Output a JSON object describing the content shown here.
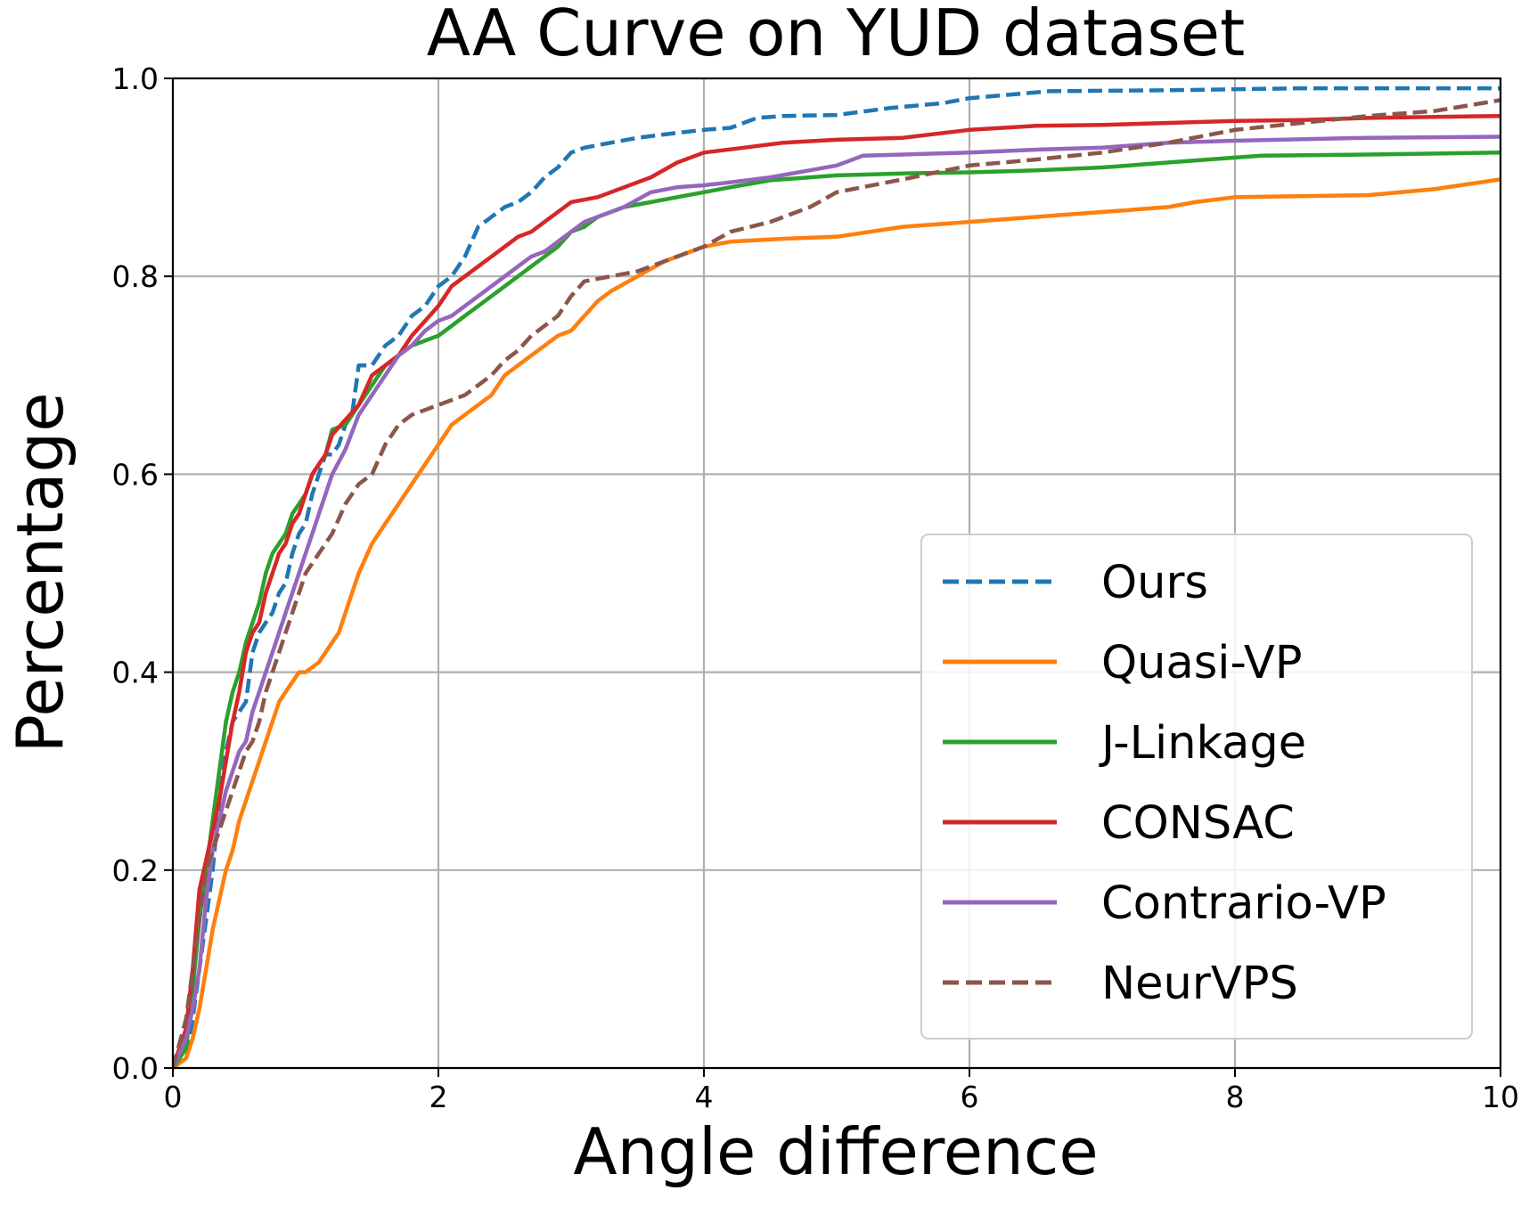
{
  "chart_data": {
    "type": "line",
    "title": "AA Curve on YUD dataset",
    "xlabel": "Angle difference",
    "ylabel": "Percentage",
    "xlim": [
      0,
      10
    ],
    "ylim": [
      0,
      1
    ],
    "xticks": [
      "0",
      "2",
      "4",
      "6",
      "8",
      "10"
    ],
    "yticks": [
      "0.0",
      "0.2",
      "0.4",
      "0.6",
      "0.8",
      "1.0"
    ],
    "grid": true,
    "legend_position": "lower-right",
    "series": [
      {
        "name": "Ours",
        "color": "#1f77b4",
        "dashed": true,
        "x": [
          0,
          0.1,
          0.15,
          0.2,
          0.25,
          0.3,
          0.35,
          0.4,
          0.45,
          0.5,
          0.55,
          0.6,
          0.65,
          0.7,
          0.75,
          0.8,
          0.85,
          0.9,
          0.95,
          1.0,
          1.05,
          1.1,
          1.15,
          1.2,
          1.25,
          1.3,
          1.35,
          1.4,
          1.5,
          1.6,
          1.7,
          1.8,
          1.9,
          2.0,
          2.1,
          2.2,
          2.3,
          2.4,
          2.5,
          2.6,
          2.7,
          2.8,
          2.9,
          3.0,
          3.1,
          3.3,
          3.5,
          3.8,
          4.0,
          4.2,
          4.4,
          4.6,
          5.0,
          5.4,
          5.8,
          6.0,
          6.6,
          7.5,
          8.5,
          9.5,
          10
        ],
        "y": [
          0,
          0.01,
          0.05,
          0.1,
          0.15,
          0.2,
          0.27,
          0.32,
          0.35,
          0.36,
          0.37,
          0.42,
          0.44,
          0.45,
          0.46,
          0.48,
          0.49,
          0.52,
          0.54,
          0.55,
          0.58,
          0.6,
          0.62,
          0.62,
          0.63,
          0.65,
          0.66,
          0.71,
          0.71,
          0.73,
          0.74,
          0.76,
          0.77,
          0.79,
          0.8,
          0.82,
          0.85,
          0.86,
          0.87,
          0.875,
          0.885,
          0.9,
          0.91,
          0.925,
          0.93,
          0.935,
          0.94,
          0.945,
          0.948,
          0.95,
          0.96,
          0.962,
          0.963,
          0.97,
          0.975,
          0.98,
          0.987,
          0.988,
          0.99,
          0.99,
          0.99
        ]
      },
      {
        "name": "Quasi-VP",
        "color": "#ff7f0e",
        "dashed": false,
        "x": [
          0,
          0.1,
          0.15,
          0.2,
          0.25,
          0.3,
          0.35,
          0.4,
          0.45,
          0.5,
          0.55,
          0.6,
          0.65,
          0.7,
          0.75,
          0.8,
          0.85,
          0.9,
          0.95,
          1.0,
          1.1,
          1.2,
          1.25,
          1.3,
          1.35,
          1.4,
          1.5,
          1.6,
          1.7,
          1.8,
          1.9,
          2.0,
          2.1,
          2.2,
          2.3,
          2.4,
          2.5,
          2.6,
          2.7,
          2.8,
          2.9,
          3.0,
          3.1,
          3.2,
          3.3,
          3.5,
          3.7,
          4.0,
          4.2,
          4.6,
          5.0,
          5.5,
          6.0,
          6.5,
          6.7,
          7.0,
          7.5,
          7.7,
          8.0,
          9.0,
          9.5,
          10
        ],
        "y": [
          0,
          0.01,
          0.03,
          0.06,
          0.1,
          0.14,
          0.17,
          0.2,
          0.22,
          0.25,
          0.27,
          0.29,
          0.31,
          0.33,
          0.35,
          0.37,
          0.38,
          0.39,
          0.4,
          0.4,
          0.41,
          0.43,
          0.44,
          0.46,
          0.48,
          0.5,
          0.53,
          0.55,
          0.57,
          0.59,
          0.61,
          0.63,
          0.65,
          0.66,
          0.67,
          0.68,
          0.7,
          0.71,
          0.72,
          0.73,
          0.74,
          0.745,
          0.76,
          0.775,
          0.785,
          0.8,
          0.815,
          0.83,
          0.835,
          0.838,
          0.84,
          0.85,
          0.855,
          0.86,
          0.862,
          0.865,
          0.87,
          0.875,
          0.88,
          0.882,
          0.888,
          0.898
        ]
      },
      {
        "name": "J-Linkage",
        "color": "#2ca02c",
        "dashed": false,
        "x": [
          0,
          0.1,
          0.15,
          0.2,
          0.25,
          0.3,
          0.35,
          0.4,
          0.45,
          0.5,
          0.55,
          0.6,
          0.65,
          0.7,
          0.75,
          0.8,
          0.85,
          0.9,
          0.95,
          1.0,
          1.05,
          1.1,
          1.15,
          1.2,
          1.3,
          1.4,
          1.5,
          1.6,
          1.7,
          1.8,
          1.9,
          2.0,
          2.1,
          2.2,
          2.3,
          2.4,
          2.5,
          2.6,
          2.7,
          2.8,
          2.9,
          3.0,
          3.1,
          3.2,
          3.4,
          3.6,
          3.8,
          4.0,
          4.2,
          4.5,
          5.0,
          5.5,
          6.0,
          6.5,
          7.0,
          7.5,
          8.0,
          8.2,
          9.0,
          10
        ],
        "y": [
          0,
          0.02,
          0.08,
          0.15,
          0.2,
          0.25,
          0.3,
          0.35,
          0.38,
          0.4,
          0.43,
          0.45,
          0.47,
          0.5,
          0.52,
          0.53,
          0.54,
          0.56,
          0.57,
          0.58,
          0.6,
          0.61,
          0.62,
          0.645,
          0.65,
          0.67,
          0.69,
          0.71,
          0.72,
          0.73,
          0.735,
          0.74,
          0.75,
          0.76,
          0.77,
          0.78,
          0.79,
          0.8,
          0.81,
          0.82,
          0.83,
          0.845,
          0.85,
          0.86,
          0.87,
          0.875,
          0.88,
          0.885,
          0.89,
          0.897,
          0.902,
          0.904,
          0.905,
          0.907,
          0.91,
          0.915,
          0.92,
          0.922,
          0.923,
          0.925
        ]
      },
      {
        "name": "CONSAC",
        "color": "#d62728",
        "dashed": false,
        "x": [
          0,
          0.1,
          0.15,
          0.2,
          0.25,
          0.3,
          0.35,
          0.4,
          0.45,
          0.5,
          0.55,
          0.6,
          0.65,
          0.7,
          0.75,
          0.8,
          0.85,
          0.9,
          0.95,
          1.0,
          1.05,
          1.1,
          1.15,
          1.2,
          1.3,
          1.4,
          1.5,
          1.6,
          1.7,
          1.8,
          1.9,
          2.0,
          2.1,
          2.2,
          2.3,
          2.4,
          2.5,
          2.6,
          2.7,
          2.8,
          2.9,
          3.0,
          3.2,
          3.4,
          3.6,
          3.8,
          4.0,
          4.3,
          4.6,
          5.0,
          5.5,
          6.0,
          6.5,
          7.0,
          7.5,
          8.0,
          8.5,
          9.0,
          10
        ],
        "y": [
          0,
          0.04,
          0.1,
          0.18,
          0.21,
          0.24,
          0.27,
          0.31,
          0.35,
          0.38,
          0.42,
          0.44,
          0.45,
          0.48,
          0.5,
          0.52,
          0.53,
          0.55,
          0.56,
          0.58,
          0.6,
          0.61,
          0.62,
          0.64,
          0.655,
          0.67,
          0.7,
          0.71,
          0.72,
          0.74,
          0.755,
          0.77,
          0.79,
          0.8,
          0.81,
          0.82,
          0.83,
          0.84,
          0.845,
          0.855,
          0.865,
          0.875,
          0.88,
          0.89,
          0.9,
          0.915,
          0.925,
          0.93,
          0.935,
          0.938,
          0.94,
          0.948,
          0.952,
          0.953,
          0.955,
          0.957,
          0.958,
          0.96,
          0.962
        ]
      },
      {
        "name": "Contrario-VP",
        "color": "#9467bd",
        "dashed": false,
        "x": [
          0,
          0.1,
          0.15,
          0.2,
          0.25,
          0.3,
          0.35,
          0.4,
          0.45,
          0.5,
          0.55,
          0.6,
          0.65,
          0.7,
          0.75,
          0.8,
          0.85,
          0.9,
          0.95,
          1.0,
          1.05,
          1.1,
          1.15,
          1.2,
          1.3,
          1.4,
          1.5,
          1.6,
          1.7,
          1.8,
          1.9,
          2.0,
          2.1,
          2.2,
          2.3,
          2.4,
          2.5,
          2.6,
          2.7,
          2.8,
          2.9,
          3.0,
          3.1,
          3.2,
          3.4,
          3.6,
          3.8,
          4.0,
          4.2,
          4.5,
          5.0,
          5.2,
          5.5,
          6.0,
          6.5,
          7.0,
          7.5,
          8.0,
          9.0,
          10
        ],
        "y": [
          0,
          0.03,
          0.06,
          0.1,
          0.17,
          0.22,
          0.25,
          0.28,
          0.3,
          0.32,
          0.33,
          0.36,
          0.38,
          0.4,
          0.42,
          0.44,
          0.46,
          0.48,
          0.5,
          0.52,
          0.54,
          0.56,
          0.58,
          0.6,
          0.625,
          0.66,
          0.68,
          0.7,
          0.72,
          0.73,
          0.745,
          0.755,
          0.76,
          0.77,
          0.78,
          0.79,
          0.8,
          0.81,
          0.82,
          0.825,
          0.835,
          0.845,
          0.855,
          0.86,
          0.87,
          0.885,
          0.89,
          0.892,
          0.895,
          0.9,
          0.912,
          0.922,
          0.923,
          0.925,
          0.928,
          0.93,
          0.935,
          0.937,
          0.94,
          0.941
        ]
      },
      {
        "name": "NeurVPS",
        "color": "#8c564b",
        "dashed": true,
        "x": [
          0,
          0.1,
          0.15,
          0.2,
          0.25,
          0.3,
          0.35,
          0.4,
          0.45,
          0.5,
          0.55,
          0.6,
          0.65,
          0.7,
          0.75,
          0.8,
          0.85,
          0.9,
          0.95,
          1.0,
          1.1,
          1.2,
          1.3,
          1.4,
          1.5,
          1.6,
          1.7,
          1.8,
          1.9,
          2.0,
          2.1,
          2.2,
          2.3,
          2.4,
          2.5,
          2.6,
          2.7,
          2.8,
          2.9,
          3.0,
          3.1,
          3.3,
          3.5,
          3.7,
          4.0,
          4.2,
          4.5,
          4.8,
          5.0,
          5.5,
          6.0,
          6.5,
          7.0,
          7.5,
          8.0,
          8.5,
          9.0,
          9.5,
          10
        ],
        "y": [
          0,
          0.05,
          0.1,
          0.15,
          0.2,
          0.22,
          0.24,
          0.26,
          0.28,
          0.3,
          0.32,
          0.33,
          0.35,
          0.38,
          0.4,
          0.42,
          0.44,
          0.46,
          0.48,
          0.5,
          0.52,
          0.54,
          0.57,
          0.59,
          0.6,
          0.63,
          0.65,
          0.66,
          0.665,
          0.67,
          0.675,
          0.68,
          0.69,
          0.7,
          0.715,
          0.725,
          0.74,
          0.75,
          0.76,
          0.78,
          0.795,
          0.8,
          0.805,
          0.815,
          0.83,
          0.845,
          0.855,
          0.87,
          0.885,
          0.898,
          0.912,
          0.918,
          0.925,
          0.935,
          0.948,
          0.955,
          0.962,
          0.967,
          0.978
        ]
      }
    ]
  }
}
